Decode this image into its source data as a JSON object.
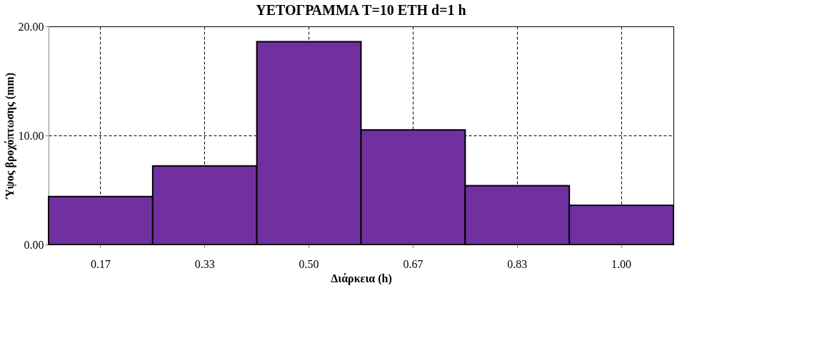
{
  "chart_data": {
    "type": "bar",
    "title": "ΥΕΤΟΓΡΑΜΜΑ  T=10 ΕΤΗ d=1 h",
    "xlabel": "Διάρκεια (h)",
    "ylabel": "Ύψος βροχόπτωσης (mm)",
    "categories": [
      "0.17",
      "0.33",
      "0.50",
      "0.67",
      "0.83",
      "1.00"
    ],
    "values": [
      4.4,
      7.2,
      18.6,
      10.5,
      5.4,
      3.6
    ],
    "color": "#7030a0",
    "ylim": [
      0,
      20
    ],
    "yticks": [
      {
        "value": 0,
        "label": "0.00"
      },
      {
        "value": 10,
        "label": "10.00"
      },
      {
        "value": 20,
        "label": "20.00"
      }
    ],
    "grid": true
  }
}
